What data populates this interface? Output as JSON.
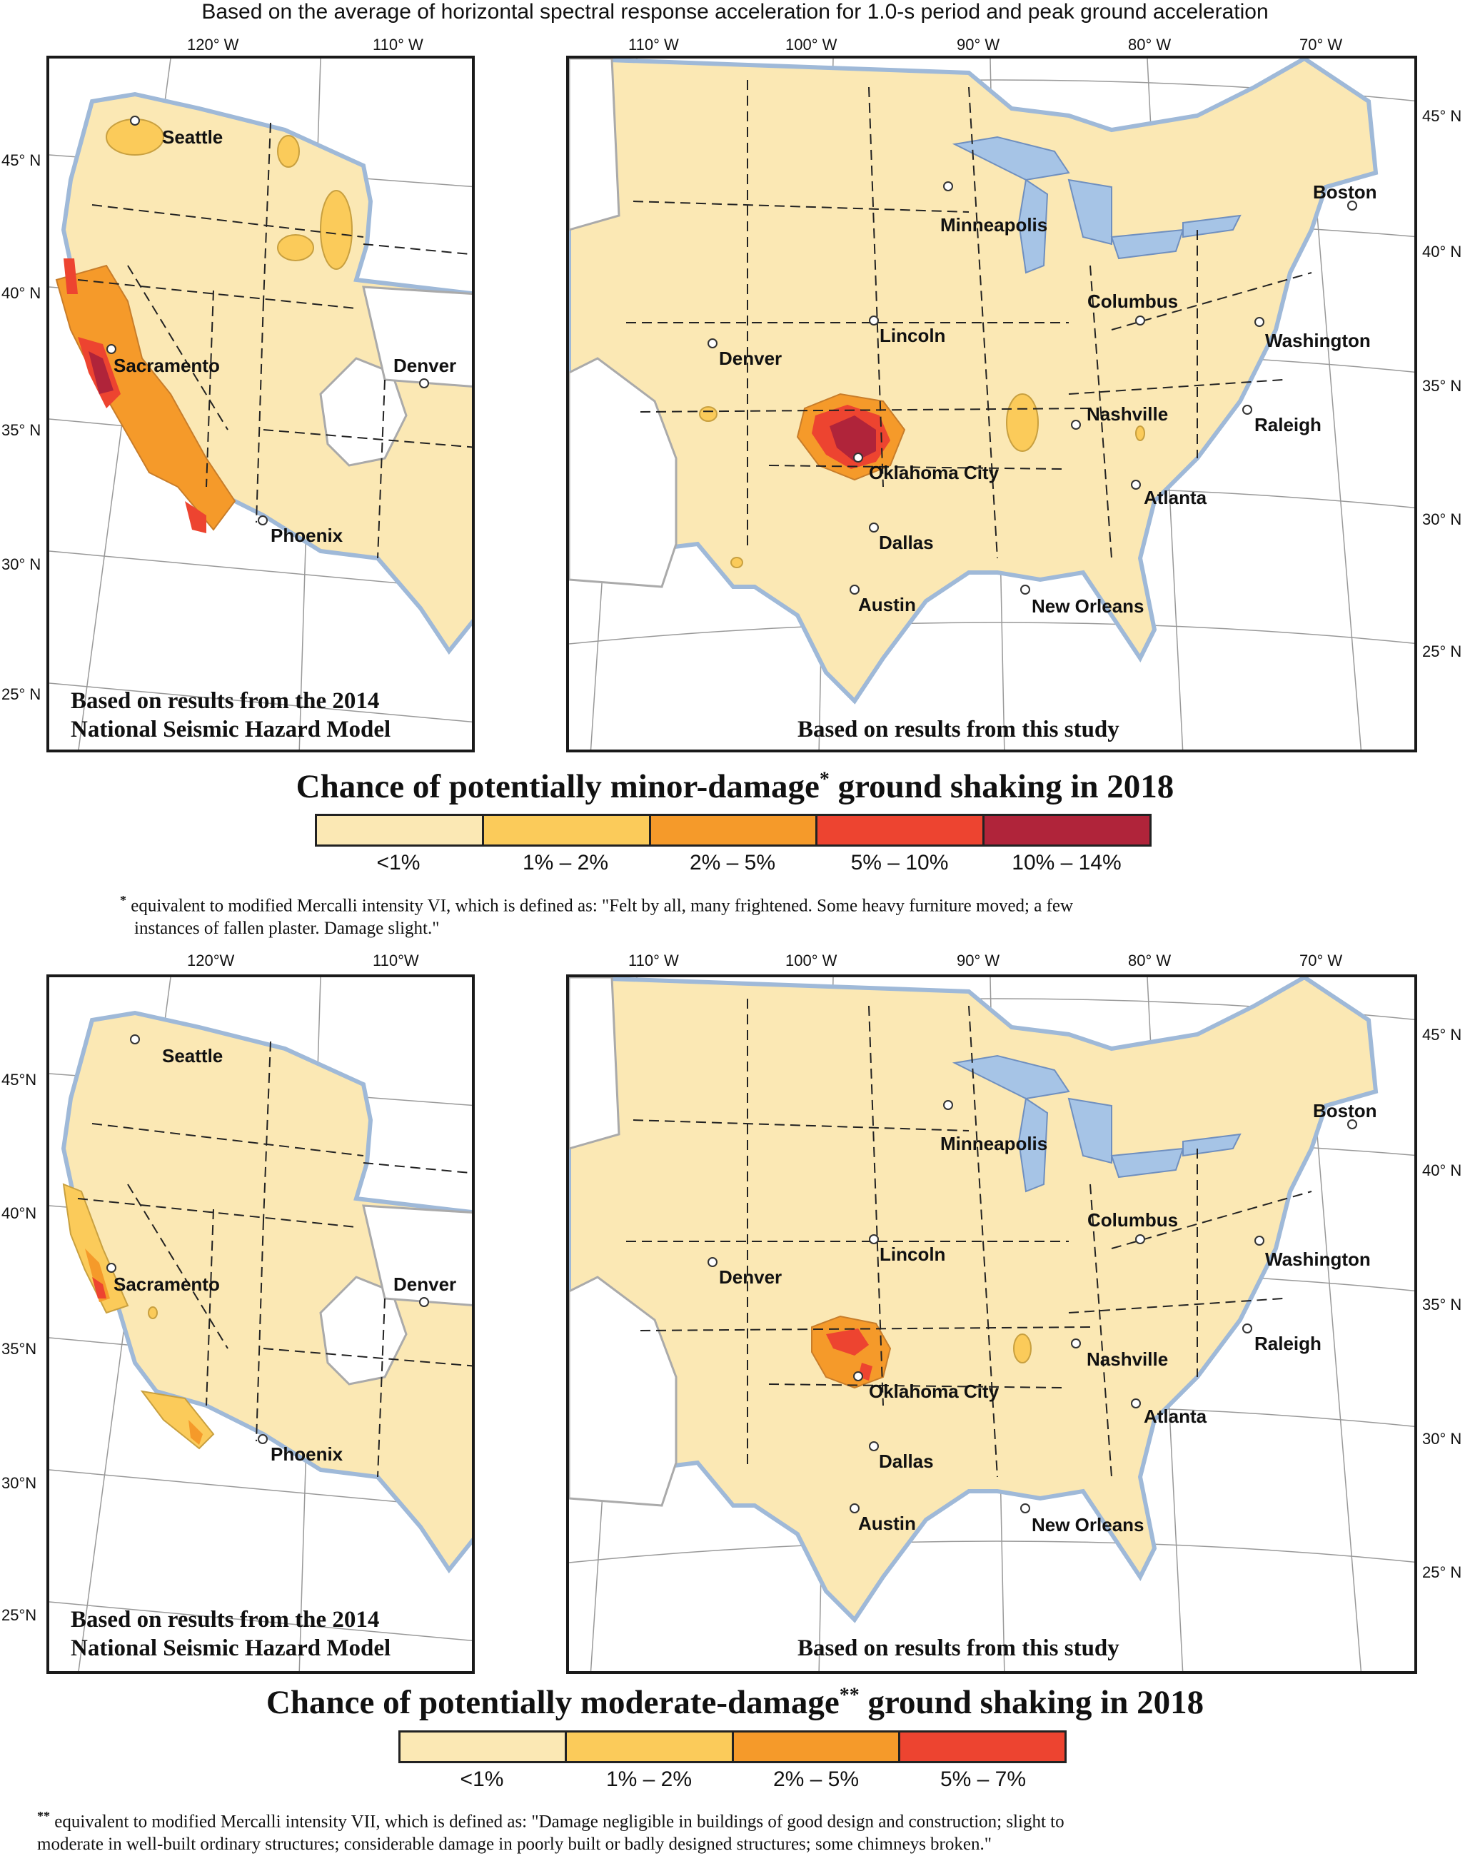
{
  "header_note": "Based on the average of horizontal spectral response acceleration for 1.0-s period and peak ground acceleration",
  "colors": {
    "lt1": "#fbe8b4",
    "c1to2": "#fbcb5a",
    "c2to5": "#f59a2a",
    "c5to10": "#ed4430",
    "c10to14": "#b0243a",
    "water": "#a6c4e6",
    "grid": "#999999"
  },
  "sections": [
    {
      "west": {
        "lon_labels": [
          "120° W",
          "110° W"
        ],
        "lat_labels": [
          "45° N",
          "40° N",
          "35° N",
          "30° N",
          "25° N"
        ],
        "caption_line1": "Based on results from the 2014",
        "caption_line2": "National Seismic Hazard Model",
        "cities": [
          "Seattle",
          "Sacramento",
          "Denver",
          "Phoenix"
        ]
      },
      "east": {
        "lon_labels": [
          "110° W",
          "100° W",
          "90° W",
          "80° W",
          "70° W"
        ],
        "lat_labels": [
          "45° N",
          "40° N",
          "35° N",
          "30° N",
          "25° N"
        ],
        "caption": "Based on results from this study",
        "cities": [
          "Minneapolis",
          "Boston",
          "Columbus",
          "Lincoln",
          "Denver",
          "Washington",
          "Nashville",
          "Raleigh",
          "Oklahoma City",
          "Atlanta",
          "Dallas",
          "Austin",
          "New Orleans"
        ]
      },
      "title_main": "Chance of potentially minor-damage",
      "title_mark": "*",
      "title_tail": " ground shaking in 2018",
      "legend": [
        "<1%",
        "1% – 2%",
        "2% – 5%",
        "5% – 10%",
        "10% – 14%"
      ],
      "footnote_mark": "*",
      "footnote_line1": "equivalent to modified Mercalli intensity VI, which is defined as: \"Felt by all, many frightened.  Some heavy furniture moved; a few",
      "footnote_line2": "instances of fallen plaster. Damage slight.\""
    },
    {
      "west": {
        "lon_labels": [
          "120°W",
          "110°W"
        ],
        "lat_labels": [
          "45°N",
          "40°N",
          "35°N",
          "30°N",
          "25°N"
        ],
        "caption_line1": "Based on results from the 2014",
        "caption_line2": "National Seismic Hazard Model",
        "cities": [
          "Seattle",
          "Sacramento",
          "Denver",
          "Phoenix"
        ]
      },
      "east": {
        "lon_labels": [
          "110° W",
          "100° W",
          "90° W",
          "80° W",
          "70° W"
        ],
        "lat_labels": [
          "45° N",
          "40° N",
          "35° N",
          "30° N",
          "25° N"
        ],
        "caption": "Based on results from this study",
        "cities": [
          "Minneapolis",
          "Boston",
          "Columbus",
          "Lincoln",
          "Denver",
          "Washington",
          "Nashville",
          "Raleigh",
          "Oklahoma City",
          "Atlanta",
          "Dallas",
          "Austin",
          "New Orleans"
        ]
      },
      "title_main": "Chance of potentially moderate-damage",
      "title_mark": "**",
      "title_tail": " ground shaking in 2018",
      "legend": [
        "<1%",
        "1% – 2%",
        "2% – 5%",
        "5% – 7%"
      ],
      "footnote_mark": "**",
      "footnote_line1": "equivalent to modified Mercalli intensity VII, which is defined as: \"Damage negligible in buildings of good design and construction; slight to",
      "footnote_line2": "moderate in well-built ordinary structures; considerable damage in poorly built or badly designed structures; some chimneys broken.\""
    }
  ]
}
